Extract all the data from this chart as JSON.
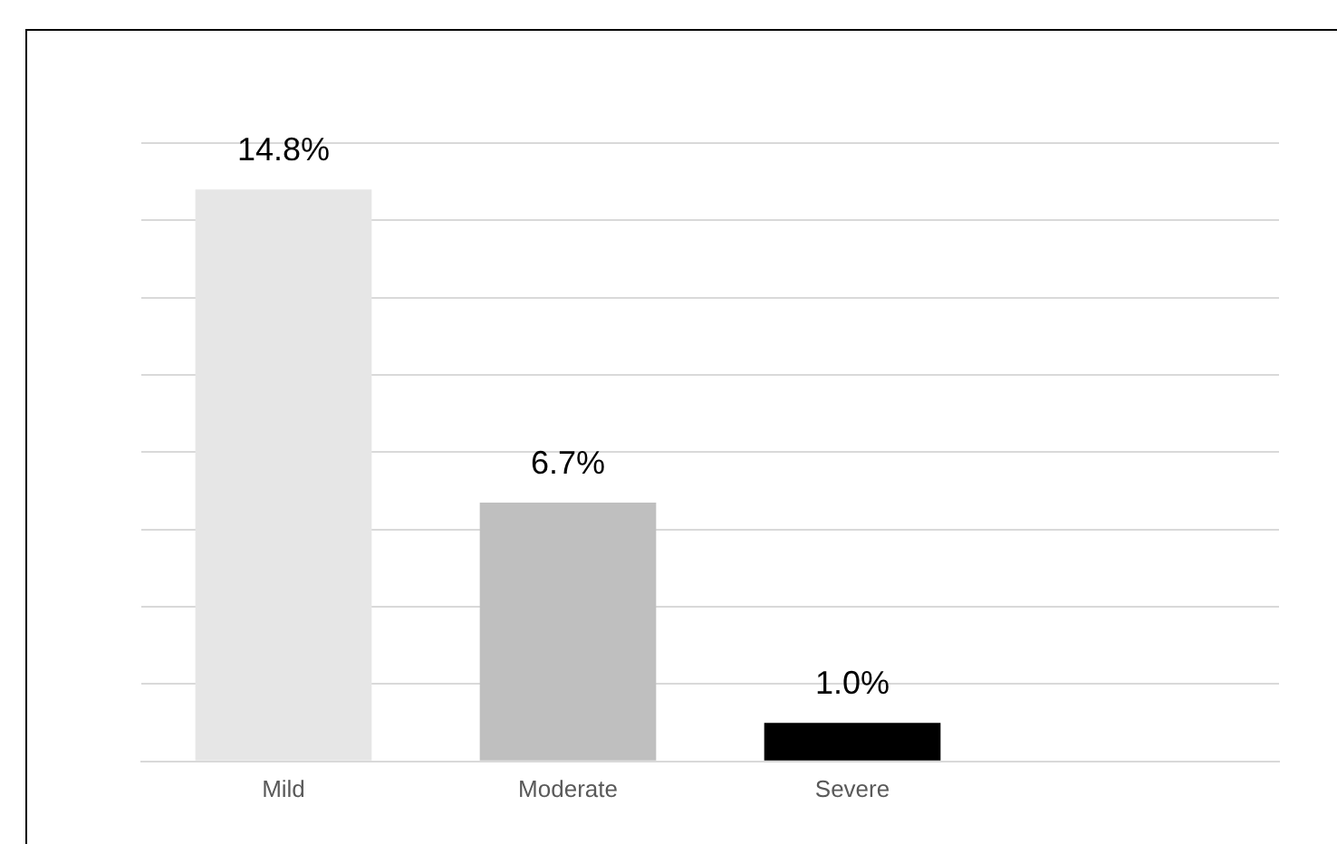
{
  "chart_data": {
    "type": "bar",
    "categories": [
      "Mild",
      "Moderate",
      "Severe",
      null
    ],
    "values": [
      14.8,
      6.7,
      1.0,
      null
    ],
    "value_labels": [
      "14.8%",
      "6.7%",
      "1.0%",
      null
    ],
    "colors": [
      "#e6e6e6",
      "#bfbfbf",
      "#000000",
      null
    ],
    "tick_labels": "x",
    "grid": "y",
    "legend": false
  }
}
